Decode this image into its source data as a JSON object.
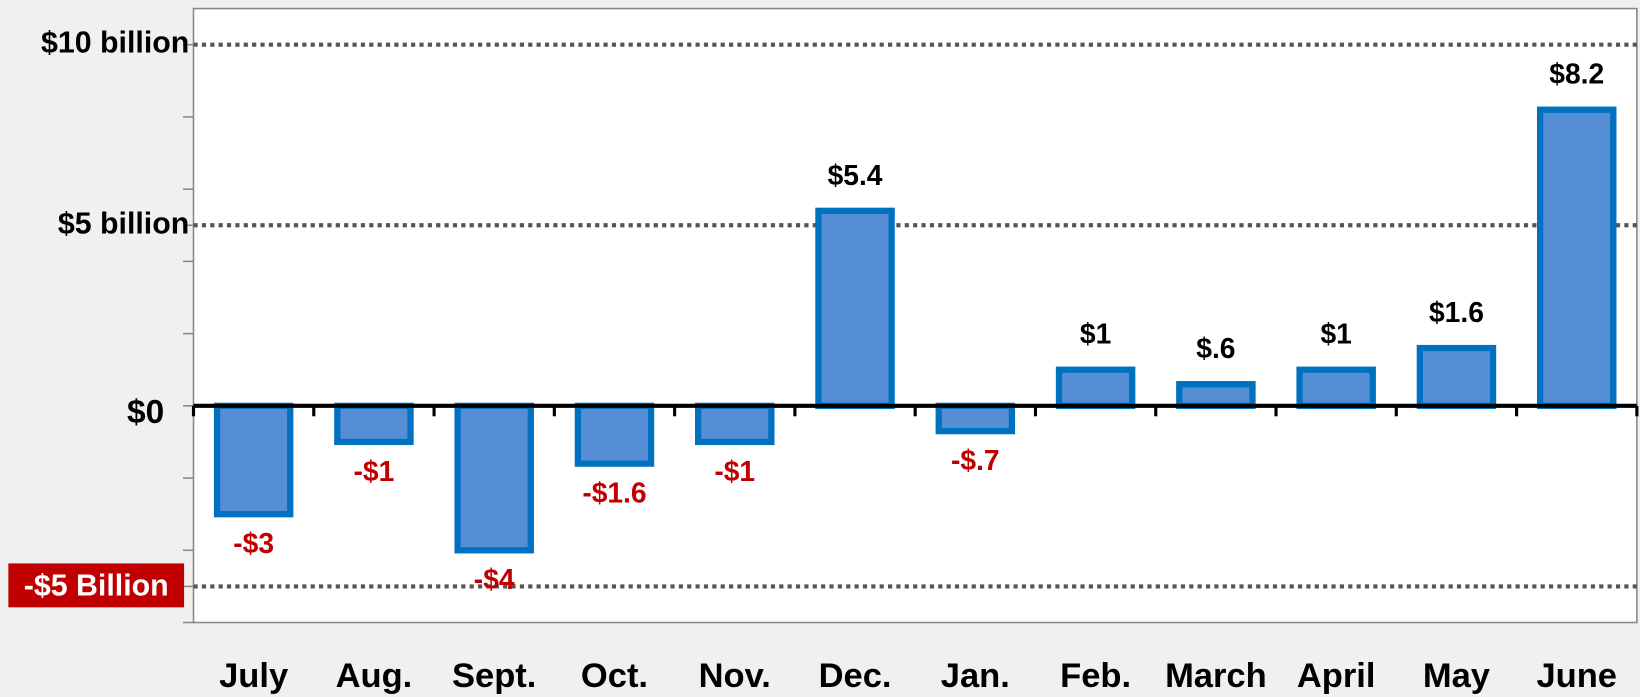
{
  "chart_data": {
    "type": "bar",
    "categories": [
      "July",
      "Aug.",
      "Sept.",
      "Oct.",
      "Nov.",
      "Dec.",
      "Jan.",
      "Feb.",
      "March",
      "April",
      "May",
      "June"
    ],
    "values": [
      -3,
      -1,
      -4,
      -1.6,
      -1,
      5.4,
      -0.7,
      1,
      0.6,
      1,
      1.6,
      8.2
    ],
    "value_labels": [
      "-$3",
      "-$1",
      "-$4",
      "-$1.6",
      "-$1",
      "$5.4",
      "-$.7",
      "$1",
      "$.6",
      "$1",
      "$1.6",
      "$8.2"
    ],
    "color": "#558ed5",
    "edge_color": "#0070c0",
    "negative_label_color": "#c00000",
    "ylim": [
      -6,
      11
    ],
    "yticks": [
      {
        "value": 10,
        "label": "$10 billion"
      },
      {
        "value": 5,
        "label": "$5 billion"
      },
      {
        "value": 0,
        "label": "$0"
      },
      {
        "value": -5,
        "label": "-$5 Billion"
      }
    ],
    "minor_yticks": [
      -6,
      -4,
      -2,
      2,
      4,
      6,
      8
    ],
    "grid": true
  }
}
